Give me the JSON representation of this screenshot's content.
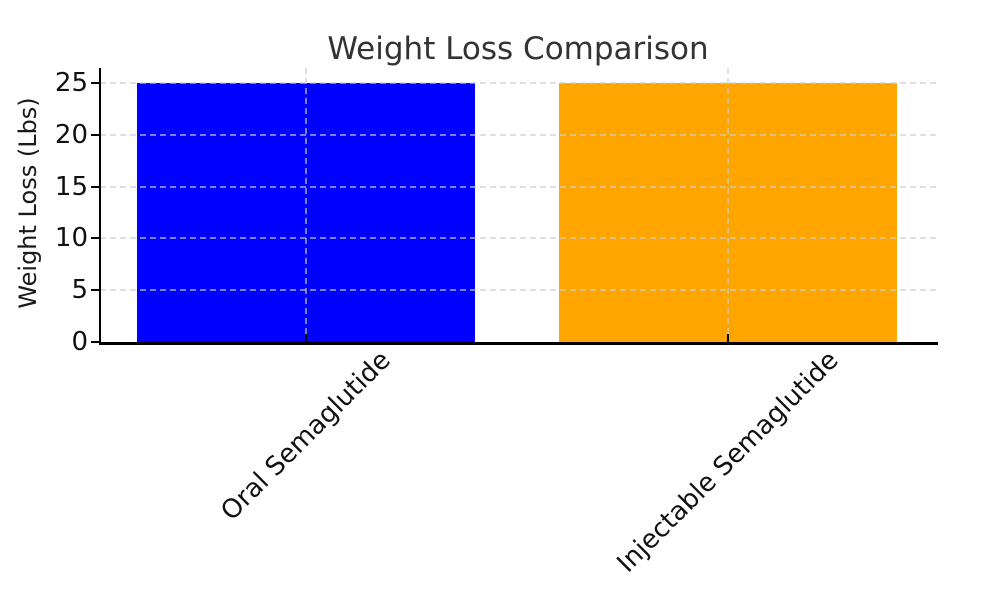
{
  "page": {
    "background": "#ffffff"
  },
  "chart_data": {
    "type": "bar",
    "title": "Weight Loss Comparison",
    "ylabel": "Weight Loss (Lbs)",
    "xlabel": "",
    "categories": [
      "Oral Semaglutide",
      "Injectable Semaglutide"
    ],
    "values": [
      25,
      25
    ],
    "series": [
      {
        "name": "Weight Loss (Lbs)",
        "values": [
          25,
          25
        ]
      }
    ],
    "bar_colors": [
      "#0000ff",
      "#ffa500"
    ],
    "yticks": [
      0,
      5,
      10,
      15,
      20,
      25
    ],
    "ylim": [
      0,
      26.7
    ],
    "xlim_categories": [
      -0.5,
      1.5
    ],
    "bar_width_fraction": 0.8,
    "xtick_rotation_deg": 45,
    "grid": {
      "visible": true,
      "axis": "both",
      "style": "dashed",
      "color": "#c9ced3",
      "drawn_over_bars": true
    },
    "legend": "none",
    "colors": {
      "spine": "#000000",
      "title_text": "#333333",
      "tick_text": "#111111",
      "background": "#ffffff"
    }
  }
}
